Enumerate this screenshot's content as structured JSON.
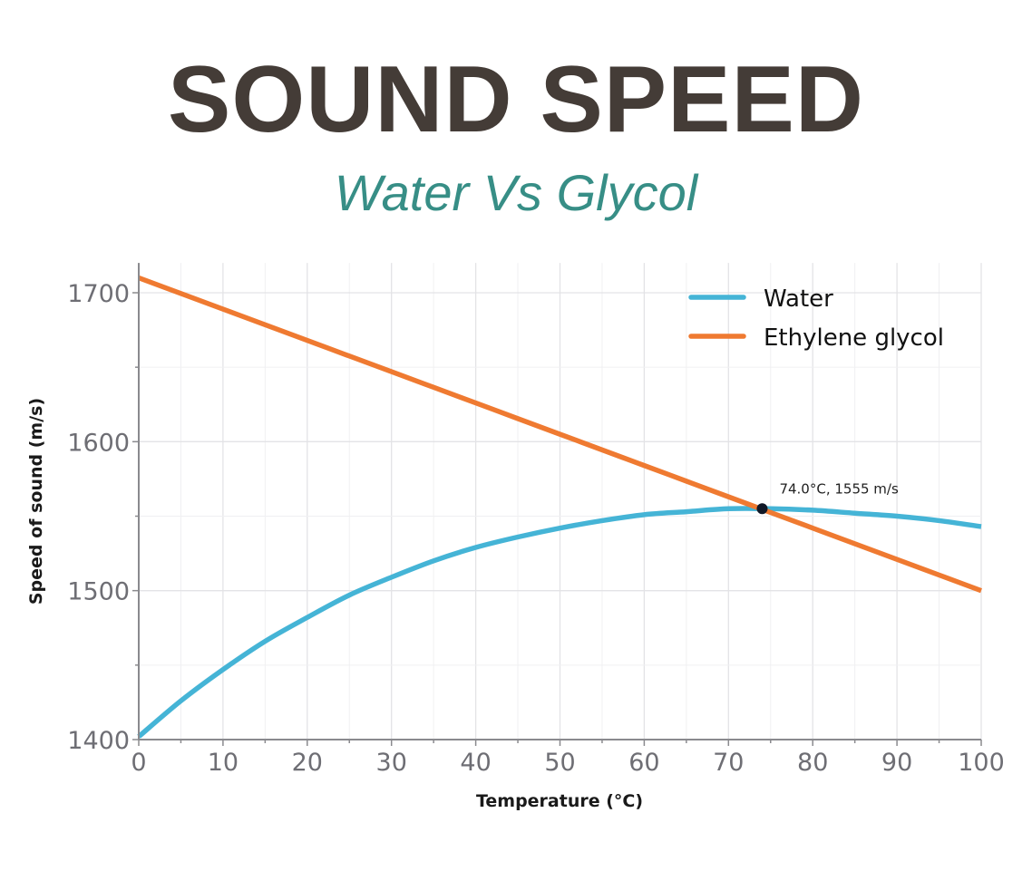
{
  "header": {
    "title": "SOUND SPEED",
    "subtitle": "Water Vs Glycol"
  },
  "chart_data": {
    "type": "line",
    "xlabel": "Temperature (°C)",
    "ylabel": "Speed of sound (m/s)",
    "xlim": [
      0,
      100
    ],
    "ylim": [
      1400,
      1720
    ],
    "xticks": [
      "0",
      "10",
      "20",
      "30",
      "40",
      "50",
      "60",
      "70",
      "80",
      "90",
      "100"
    ],
    "yticks": [
      "1400",
      "1500",
      "1600",
      "1700"
    ],
    "grid": true,
    "legend_position": "top-right",
    "x": [
      0,
      5,
      10,
      15,
      20,
      25,
      30,
      35,
      40,
      45,
      50,
      55,
      60,
      65,
      70,
      75,
      80,
      85,
      90,
      95,
      100
    ],
    "series": [
      {
        "name": "Water",
        "color": "#45b4d6",
        "values": [
          1402,
          1426,
          1447,
          1466,
          1482,
          1497,
          1509,
          1520,
          1529,
          1536,
          1542,
          1547,
          1551,
          1553,
          1555,
          1555,
          1554,
          1552,
          1550,
          1547,
          1543
        ]
      },
      {
        "name": "Ethylene glycol",
        "color": "#ef7a31",
        "values": [
          1710,
          1699.5,
          1689,
          1678.5,
          1668,
          1657.5,
          1647,
          1636.5,
          1626,
          1615.5,
          1605,
          1594.5,
          1584,
          1573.5,
          1563,
          1552.5,
          1542,
          1531.5,
          1521,
          1510.5,
          1500
        ]
      }
    ],
    "annotation": {
      "x": 74.0,
      "y": 1555,
      "label": "74.0°C, 1555 m/s"
    }
  }
}
